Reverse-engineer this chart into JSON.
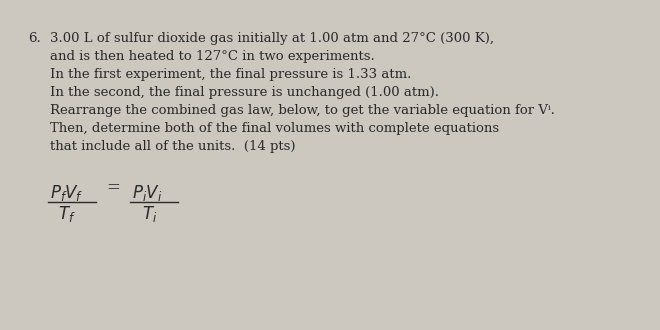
{
  "background_color": "#ccc8c0",
  "text_color": "#2a2a2a",
  "number": "6.",
  "line1": "3.00 L of sulfur dioxide gas initially at 1.00 atm and 27°C (300 K),",
  "line2": "and is then heated to 127°C in two experiments.",
  "line3": "In the first experiment, the final pressure is 1.33 atm.",
  "line4": "In the second, the final pressure is unchanged (1.00 atm).",
  "line5": "Rearrange the combined gas law, below, to get the variable equation for Vⁱ.",
  "line6": "Then, determine both of the final volumes with complete equations",
  "line7": "that include all of the units.  (14 pts)",
  "font_size_body": 9.5,
  "font_size_formula": 12
}
